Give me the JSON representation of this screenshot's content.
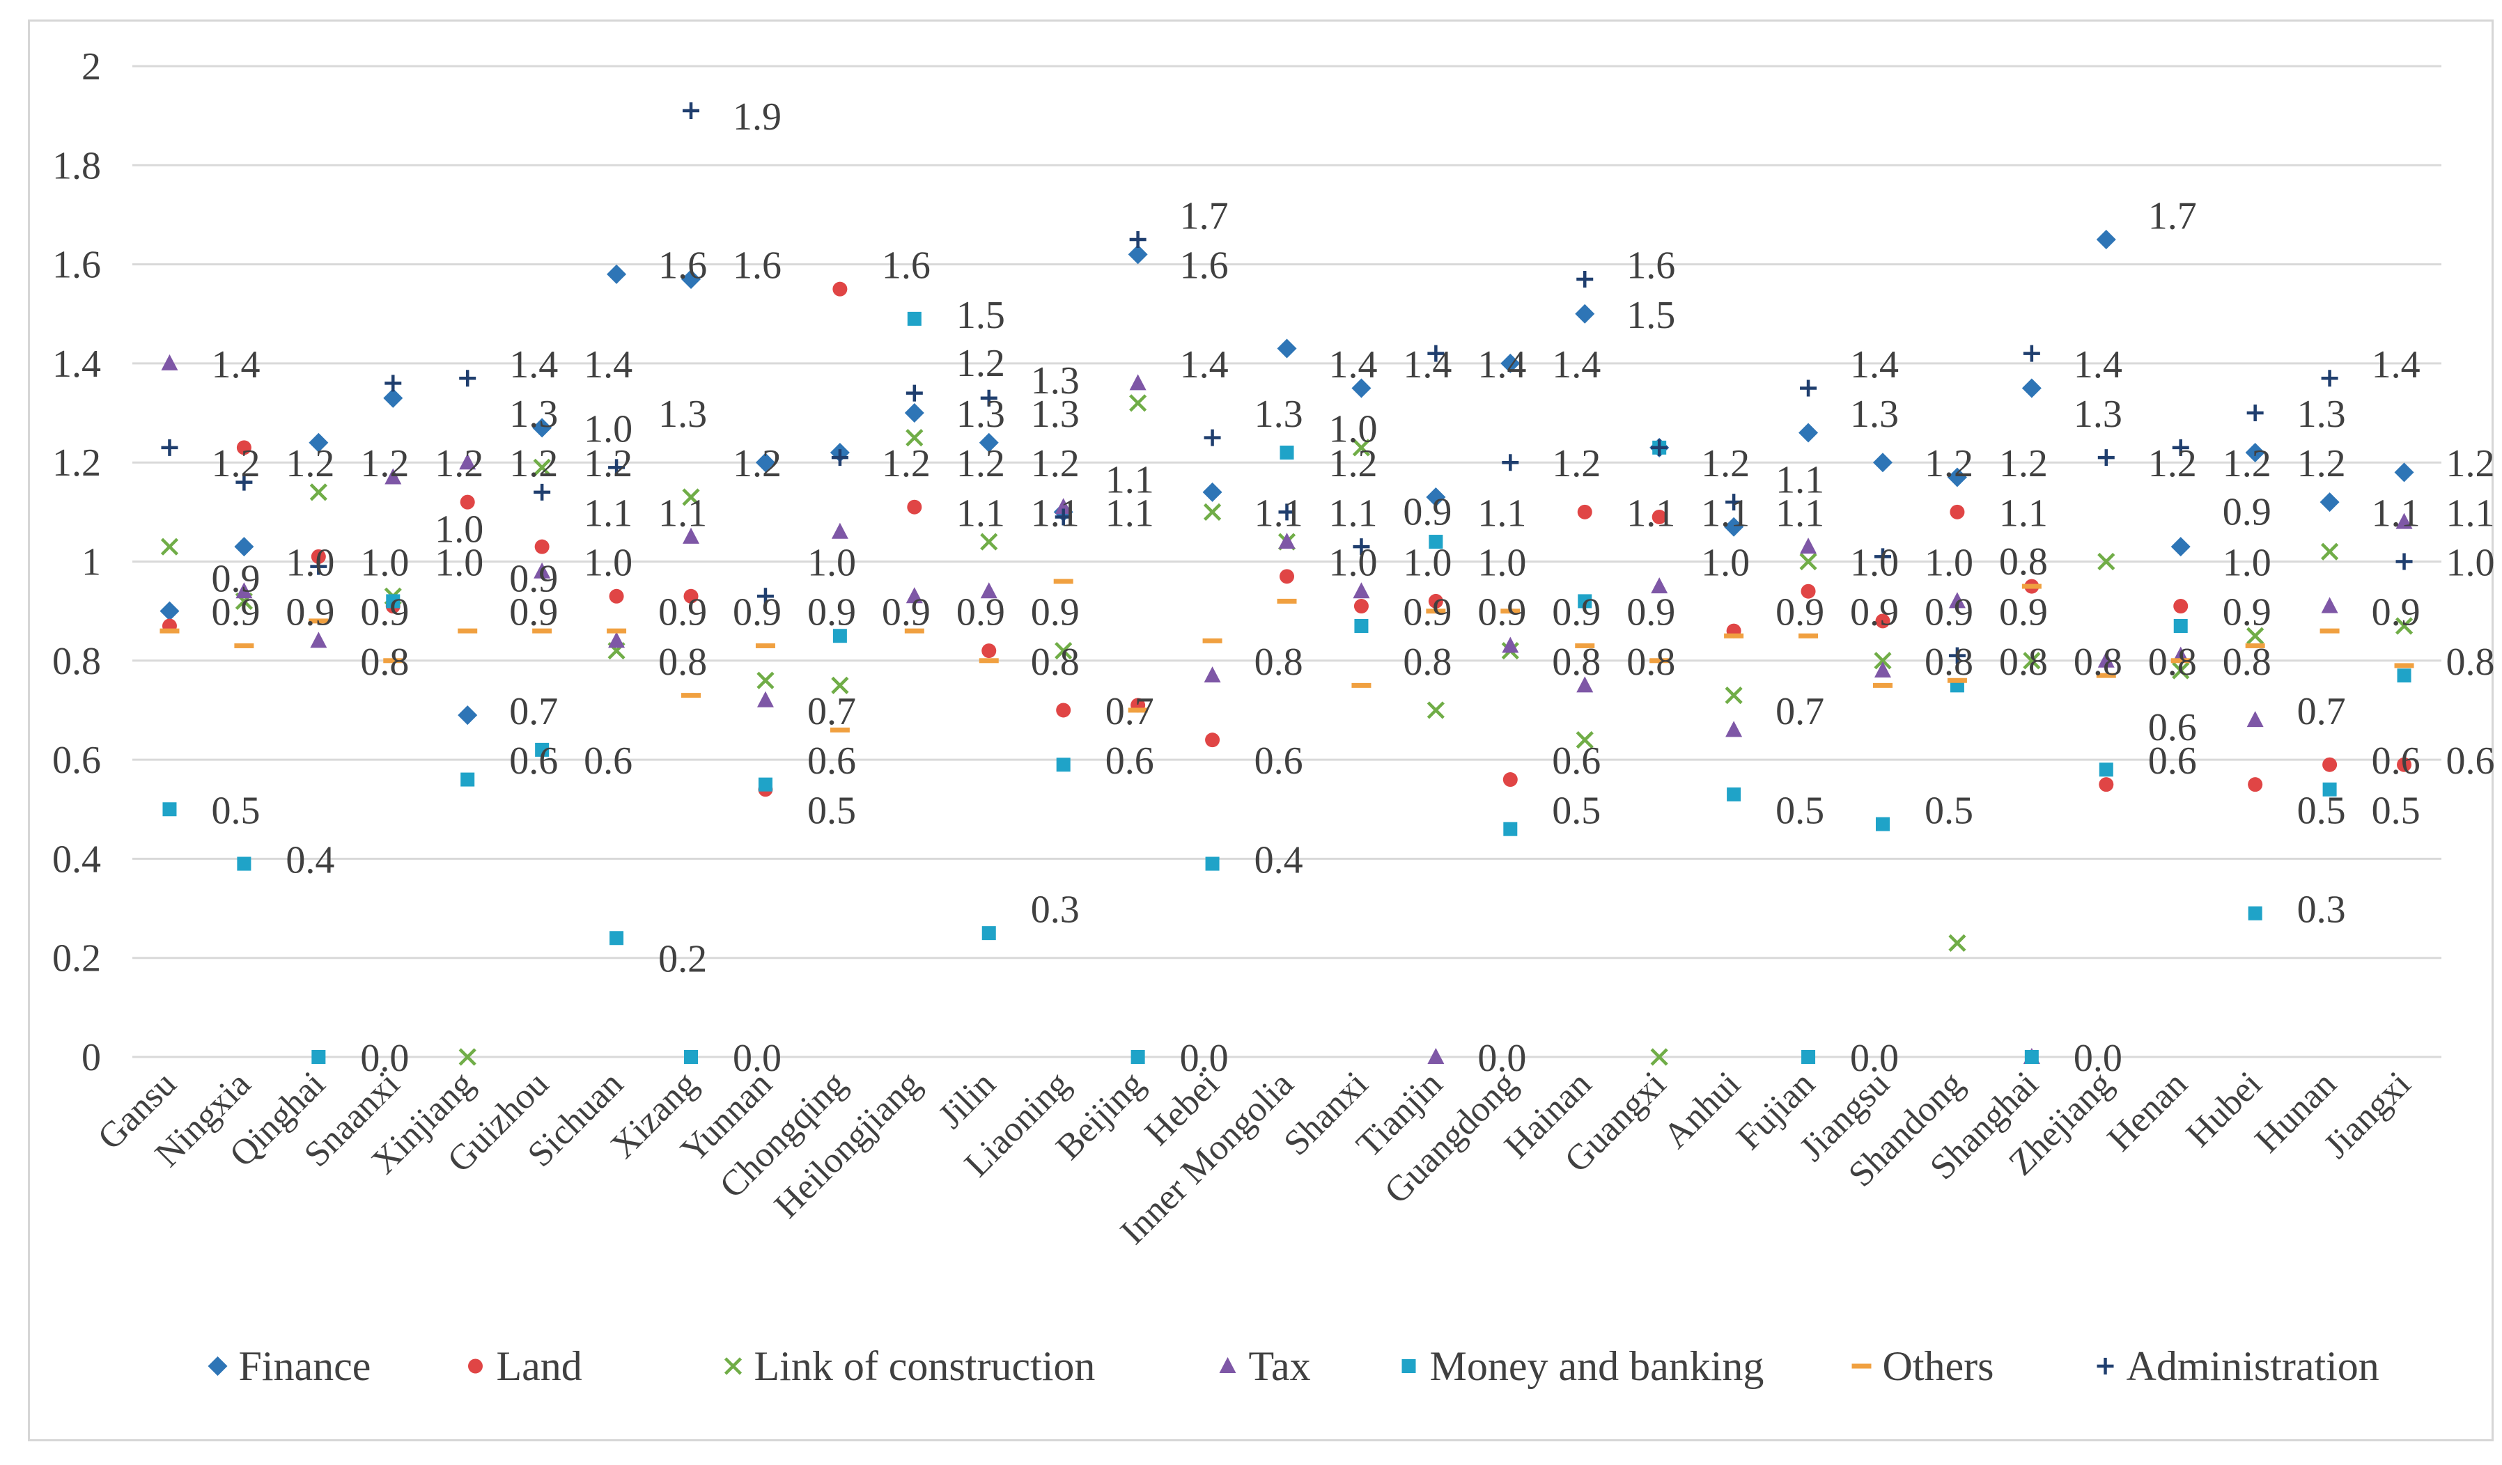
{
  "chart_data": {
    "type": "scatter",
    "title": "",
    "xlabel": "",
    "ylabel": "",
    "ylim": [
      0,
      2
    ],
    "y_ticks": [
      "0",
      "0.2",
      "0.4",
      "0.6",
      "0.8",
      "1",
      "1.2",
      "1.4",
      "1.6",
      "1.8",
      "2"
    ],
    "grid": "horizontal",
    "legend_position": "bottom",
    "categories": [
      "Gansu",
      "Ningxia",
      "Qinghai",
      "Snaanxi",
      "Xinjiang",
      "Guizhou",
      "Sichuan",
      "Xizang",
      "Yunnan",
      "Chongqing",
      "Heilongjiang",
      "Jilin",
      "Liaoning",
      "Beijing",
      "Hebei",
      "Inner Mongolia",
      "Shanxi",
      "Tianjin",
      "Guangdong",
      "Hainan",
      "Guangxi",
      "Anhui",
      "Fujian",
      "Jiangsu",
      "Shandong",
      "Shanghai",
      "Zhejiang",
      "Henan",
      "Hubei",
      "Hunan",
      "Jiangxi"
    ],
    "series": [
      {
        "name": "Finance",
        "marker": "diamond",
        "color": "#2E75B6",
        "values": [
          0.9,
          1.03,
          1.24,
          1.33,
          0.69,
          1.27,
          1.58,
          1.57,
          1.2,
          1.22,
          1.3,
          1.24,
          1.1,
          1.62,
          1.14,
          1.43,
          1.35,
          1.13,
          1.4,
          1.5,
          1.23,
          1.07,
          1.26,
          1.2,
          1.17,
          1.35,
          1.65,
          1.03,
          1.22,
          1.12,
          1.18
        ]
      },
      {
        "name": "Land",
        "marker": "circle",
        "color": "#E04545",
        "values": [
          0.87,
          1.23,
          1.01,
          0.91,
          1.12,
          1.03,
          0.93,
          0.93,
          0.54,
          1.55,
          1.11,
          0.82,
          0.7,
          0.71,
          0.64,
          0.97,
          0.91,
          0.92,
          0.56,
          1.1,
          1.09,
          0.86,
          0.94,
          0.88,
          1.1,
          0.95,
          0.55,
          0.91,
          0.55,
          0.59,
          0.59
        ]
      },
      {
        "name": "Link of construction",
        "marker": "x",
        "color": "#70AD47",
        "values": [
          1.03,
          0.92,
          1.14,
          0.93,
          0.0,
          1.19,
          0.82,
          1.13,
          0.76,
          0.75,
          1.25,
          1.04,
          0.82,
          1.32,
          1.1,
          1.04,
          1.23,
          0.7,
          0.82,
          0.64,
          0.0,
          0.73,
          1.0,
          0.8,
          0.23,
          0.8,
          1.0,
          0.78,
          0.85,
          1.02,
          0.87
        ]
      },
      {
        "name": "Tax",
        "marker": "triangle",
        "color": "#7E57A6",
        "values": [
          1.4,
          0.94,
          0.84,
          1.17,
          1.2,
          0.98,
          0.84,
          1.05,
          0.72,
          1.06,
          0.93,
          0.94,
          1.11,
          1.36,
          0.77,
          1.04,
          0.94,
          0.0,
          0.83,
          0.75,
          0.95,
          0.66,
          1.03,
          0.78,
          0.92,
          0.0,
          0.8,
          0.81,
          0.68,
          0.91,
          1.08
        ]
      },
      {
        "name": "Money and banking",
        "marker": "square",
        "color": "#1FA3C8",
        "values": [
          0.5,
          0.39,
          0.0,
          0.92,
          0.56,
          0.62,
          0.24,
          0.0,
          0.55,
          0.85,
          1.49,
          0.25,
          0.59,
          0.0,
          0.39,
          1.22,
          0.87,
          1.04,
          0.46,
          0.92,
          1.23,
          0.53,
          0.0,
          0.47,
          0.75,
          0.0,
          0.58,
          0.87,
          0.29,
          0.54,
          0.77
        ]
      },
      {
        "name": "Others",
        "marker": "dash",
        "color": "#F0A040",
        "values": [
          0.86,
          0.83,
          0.88,
          0.8,
          0.86,
          0.86,
          0.86,
          0.73,
          0.83,
          0.66,
          0.86,
          0.8,
          0.96,
          0.7,
          0.84,
          0.92,
          0.75,
          0.9,
          0.9,
          0.83,
          0.8,
          0.85,
          0.85,
          0.75,
          0.76,
          0.95,
          0.77,
          0.8,
          0.83,
          0.86,
          0.79
        ]
      },
      {
        "name": "Administration",
        "marker": "plus",
        "color": "#1F3E6E",
        "values": [
          1.23,
          1.16,
          0.99,
          1.36,
          1.37,
          1.14,
          1.19,
          1.91,
          0.93,
          1.21,
          1.34,
          1.33,
          1.09,
          1.65,
          1.25,
          1.1,
          1.03,
          1.42,
          1.2,
          1.57,
          1.23,
          1.12,
          1.35,
          1.01,
          0.81,
          1.42,
          1.21,
          1.23,
          1.3,
          1.37,
          1.0
        ]
      }
    ],
    "data_labels": [
      {
        "category": "Gansu",
        "texts": [
          "1.4",
          "1.2",
          "0.9",
          "0.9",
          "0.5"
        ]
      },
      {
        "category": "Ningxia",
        "texts": [
          "1.2",
          "1.0",
          "0.9",
          "0.4"
        ]
      },
      {
        "category": "Qinghai",
        "texts": [
          "1.2",
          "1.0",
          "0.9",
          "0.8",
          "0.0"
        ]
      },
      {
        "category": "Snaanxi",
        "texts": [
          "1.2",
          "1.0",
          "1.0"
        ]
      },
      {
        "category": "Xinjiang",
        "texts": [
          "1.4",
          "1.3",
          "1.2",
          "0.9",
          "0.9",
          "0.7",
          "0.6"
        ]
      },
      {
        "category": "Guizhou",
        "texts": [
          "1.4",
          "1.2",
          "1.1",
          "1.0",
          "1.0",
          "0.6"
        ]
      },
      {
        "category": "Sichuan",
        "texts": [
          "1.6",
          "1.3",
          "1.1",
          "0.9",
          "0.8",
          "0.2"
        ]
      },
      {
        "category": "Xizang",
        "texts": [
          "1.9",
          "1.6",
          "1.2",
          "0.9",
          "0.0"
        ]
      },
      {
        "category": "Yunnan",
        "texts": [
          "1.0",
          "0.9",
          "0.7",
          "0.6",
          "0.5"
        ]
      },
      {
        "category": "Chongqing",
        "texts": [
          "1.6",
          "1.2",
          "0.9"
        ]
      },
      {
        "category": "Heilongjiang",
        "texts": [
          "1.5",
          "1.3",
          "1.2",
          "1.2",
          "1.1",
          "0.9"
        ]
      },
      {
        "category": "Jilin",
        "texts": [
          "1.3",
          "1.3",
          "1.2",
          "1.1",
          "0.9",
          "0.8",
          "0.3"
        ]
      },
      {
        "category": "Liaoning",
        "texts": [
          "1.1",
          "1.1",
          "0.7",
          "0.6"
        ]
      },
      {
        "category": "Beijing",
        "texts": [
          "1.7",
          "1.6",
          "1.4",
          "0.0"
        ]
      },
      {
        "category": "Hebei",
        "texts": [
          "1.3",
          "1.1",
          "0.8",
          "0.6",
          "0.4"
        ]
      },
      {
        "category": "Inner Mongolia",
        "texts": [
          "1.4",
          "1.2",
          "1.1",
          "1.0",
          "1.0"
        ]
      },
      {
        "category": "Shanxi",
        "texts": [
          "1.4",
          "1.0",
          "0.9",
          "0.9",
          "0.8"
        ]
      },
      {
        "category": "Tianjin",
        "texts": [
          "1.4",
          "1.1",
          "1.0",
          "0.9",
          "0.0"
        ]
      },
      {
        "category": "Guangdong",
        "texts": [
          "1.4",
          "1.2",
          "0.9",
          "0.8",
          "0.6",
          "0.5"
        ]
      },
      {
        "category": "Hainan",
        "texts": [
          "1.6",
          "1.5",
          "1.1",
          "0.9",
          "0.8"
        ]
      },
      {
        "category": "Guangxi",
        "texts": [
          "1.2",
          "1.1",
          "1.0"
        ]
      },
      {
        "category": "Anhui",
        "texts": [
          "1.1",
          "1.1",
          "0.9",
          "0.7",
          "0.5"
        ]
      },
      {
        "category": "Fujian",
        "texts": [
          "1.4",
          "1.3",
          "1.0",
          "0.9",
          "0.0"
        ]
      },
      {
        "category": "Jiangsu",
        "texts": [
          "1.2",
          "1.0",
          "0.9",
          "0.8",
          "0.5"
        ]
      },
      {
        "category": "Shandong",
        "texts": [
          "1.2",
          "1.1",
          "0.9",
          "0.8",
          "0.8"
        ]
      },
      {
        "category": "Shanghai",
        "texts": [
          "1.4",
          "1.3",
          "0.8",
          "0.0"
        ]
      },
      {
        "category": "Zhejiang",
        "texts": [
          "1.7",
          "1.2",
          "0.8",
          "0.6",
          "0.6"
        ]
      },
      {
        "category": "Henan",
        "texts": [
          "1.2",
          "1.0",
          "0.9",
          "0.9",
          "0.8"
        ]
      },
      {
        "category": "Hubei",
        "texts": [
          "1.3",
          "1.2",
          "0.7",
          "0.5",
          "0.3"
        ]
      },
      {
        "category": "Hunan",
        "texts": [
          "1.4",
          "1.1",
          "0.9",
          "0.6",
          "0.5"
        ]
      },
      {
        "category": "Jiangxi",
        "texts": [
          "1.2",
          "1.1",
          "1.0",
          "0.8",
          "0.6"
        ]
      }
    ]
  }
}
